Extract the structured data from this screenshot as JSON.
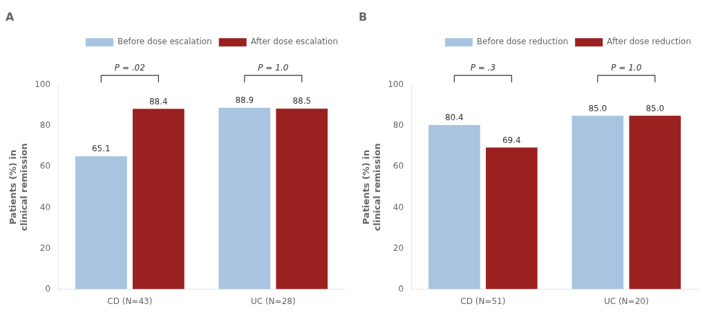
{
  "chart_data": [
    {
      "type": "bar",
      "title": "A",
      "categories": [
        "CD (N=43)",
        "UC (N=28)"
      ],
      "series": [
        {
          "name": "Before dose escalation",
          "color": "#a8c4e0",
          "values": [
            65.1,
            88.9
          ],
          "value_labels": [
            "65.1",
            "88.9"
          ]
        },
        {
          "name": "After dose escalation",
          "color": "#9b2020",
          "values": [
            88.4,
            88.5
          ],
          "value_labels": [
            "88.4",
            "88.5"
          ]
        }
      ],
      "annotations": [
        "P = .02",
        "P = 1.0"
      ],
      "ylabel": "Patients (%) in\nclinical remission",
      "ylim": [
        0,
        100
      ],
      "yticks": [
        0,
        20,
        40,
        60,
        80,
        100
      ],
      "grid": false,
      "legend": "upper right",
      "data_labels": true
    },
    {
      "type": "bar",
      "title": "B",
      "categories": [
        "CD (N=51)",
        "UC (N=20)"
      ],
      "series": [
        {
          "name": "Before dose reduction",
          "color": "#a8c4e0",
          "values": [
            80.4,
            85.0
          ],
          "value_labels": [
            "80.4",
            "85.0"
          ]
        },
        {
          "name": "After dose reduction",
          "color": "#9b2020",
          "values": [
            69.4,
            85.0
          ],
          "value_labels": [
            "69.4",
            "85.0"
          ]
        }
      ],
      "annotations": [
        "P = .3",
        "P = 1.0"
      ],
      "ylabel": "Patients (%) in\nclinical remission",
      "ylim": [
        0,
        100
      ],
      "yticks": [
        0,
        20,
        40,
        60,
        80,
        100
      ],
      "grid": false,
      "legend": "upper right",
      "data_labels": true
    }
  ]
}
